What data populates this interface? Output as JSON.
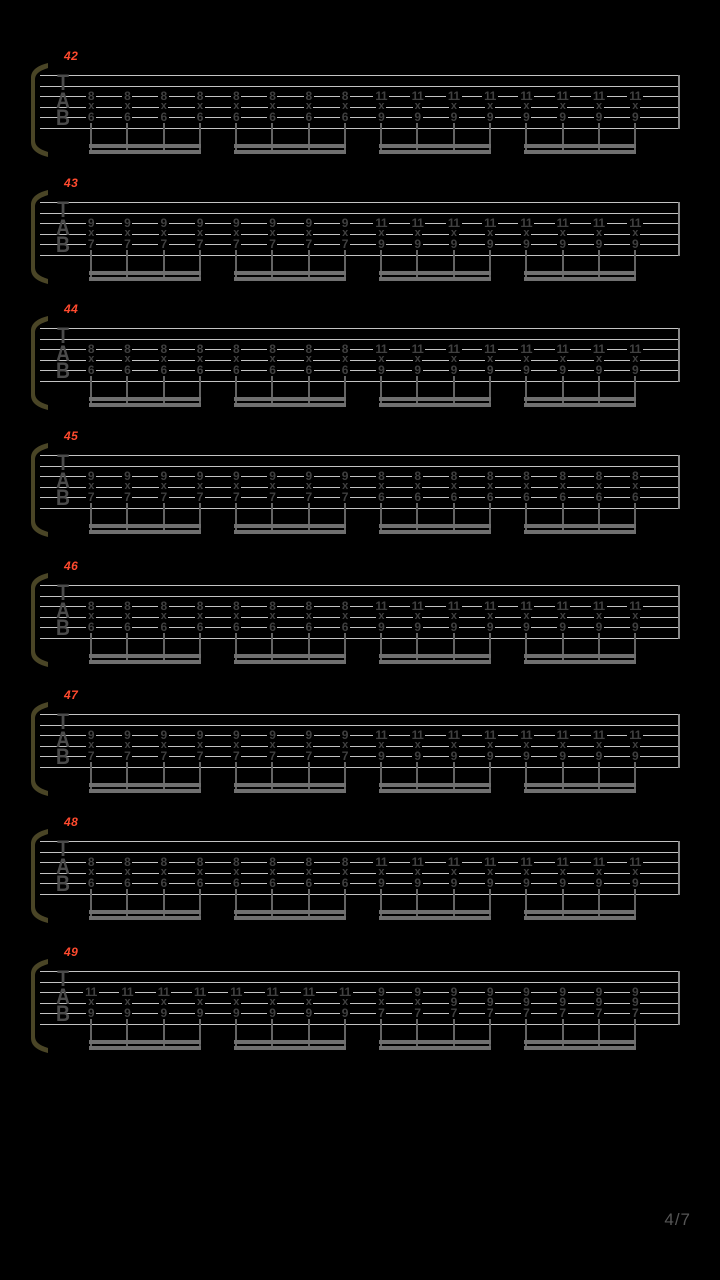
{
  "page": {
    "indicator": "4/7"
  },
  "clef": {
    "letters": [
      "T",
      "A",
      "B"
    ]
  },
  "colors": {
    "background": "#000000",
    "staff_line": "#c4c4c4",
    "fret_text": "#404040",
    "stem": "#646464",
    "beam": "#707070",
    "bracket": "#4a4526",
    "clef": "#4b4b4b",
    "barline": "#8a8a8a",
    "measure_number": "#ff4a2e",
    "page_indicator": "#565656"
  },
  "notation": {
    "string_lines": [
      3,
      4,
      5
    ],
    "note_value": "sixteenth",
    "beam_groups_per_measure": 4,
    "stacks_per_measure": 16
  },
  "measures": [
    {
      "number": "42",
      "stacks": [
        [
          "8",
          "x",
          "6"
        ],
        [
          "8",
          "x",
          "6"
        ],
        [
          "8",
          "x",
          "6"
        ],
        [
          "8",
          "x",
          "6"
        ],
        [
          "8",
          "x",
          "6"
        ],
        [
          "8",
          "x",
          "6"
        ],
        [
          "8",
          "x",
          "6"
        ],
        [
          "8",
          "x",
          "6"
        ],
        [
          "11",
          "x",
          "9"
        ],
        [
          "11",
          "x",
          "9"
        ],
        [
          "11",
          "x",
          "9"
        ],
        [
          "11",
          "x",
          "9"
        ],
        [
          "11",
          "x",
          "9"
        ],
        [
          "11",
          "x",
          "9"
        ],
        [
          "11",
          "x",
          "9"
        ],
        [
          "11",
          "x",
          "9"
        ]
      ]
    },
    {
      "number": "43",
      "stacks": [
        [
          "9",
          "x",
          "7"
        ],
        [
          "9",
          "x",
          "7"
        ],
        [
          "9",
          "x",
          "7"
        ],
        [
          "9",
          "x",
          "7"
        ],
        [
          "9",
          "x",
          "7"
        ],
        [
          "9",
          "x",
          "7"
        ],
        [
          "9",
          "x",
          "7"
        ],
        [
          "9",
          "x",
          "7"
        ],
        [
          "11",
          "x",
          "9"
        ],
        [
          "11",
          "x",
          "9"
        ],
        [
          "11",
          "x",
          "9"
        ],
        [
          "11",
          "x",
          "9"
        ],
        [
          "11",
          "x",
          "9"
        ],
        [
          "11",
          "x",
          "9"
        ],
        [
          "11",
          "x",
          "9"
        ],
        [
          "11",
          "x",
          "9"
        ]
      ]
    },
    {
      "number": "44",
      "stacks": [
        [
          "8",
          "x",
          "6"
        ],
        [
          "8",
          "x",
          "6"
        ],
        [
          "8",
          "x",
          "6"
        ],
        [
          "8",
          "x",
          "6"
        ],
        [
          "8",
          "x",
          "6"
        ],
        [
          "8",
          "x",
          "6"
        ],
        [
          "8",
          "x",
          "6"
        ],
        [
          "8",
          "x",
          "6"
        ],
        [
          "11",
          "x",
          "9"
        ],
        [
          "11",
          "x",
          "9"
        ],
        [
          "11",
          "x",
          "9"
        ],
        [
          "11",
          "x",
          "9"
        ],
        [
          "11",
          "x",
          "9"
        ],
        [
          "11",
          "x",
          "9"
        ],
        [
          "11",
          "x",
          "9"
        ],
        [
          "11",
          "x",
          "9"
        ]
      ]
    },
    {
      "number": "45",
      "stacks": [
        [
          "9",
          "x",
          "7"
        ],
        [
          "9",
          "x",
          "7"
        ],
        [
          "9",
          "x",
          "7"
        ],
        [
          "9",
          "x",
          "7"
        ],
        [
          "9",
          "x",
          "7"
        ],
        [
          "9",
          "x",
          "7"
        ],
        [
          "9",
          "x",
          "7"
        ],
        [
          "9",
          "x",
          "7"
        ],
        [
          "8",
          "x",
          "6"
        ],
        [
          "8",
          "x",
          "6"
        ],
        [
          "8",
          "x",
          "6"
        ],
        [
          "8",
          "x",
          "6"
        ],
        [
          "8",
          "x",
          "6"
        ],
        [
          "8",
          "x",
          "6"
        ],
        [
          "8",
          "x",
          "6"
        ],
        [
          "8",
          "x",
          "6"
        ]
      ]
    },
    {
      "number": "46",
      "stacks": [
        [
          "8",
          "x",
          "6"
        ],
        [
          "8",
          "x",
          "6"
        ],
        [
          "8",
          "x",
          "6"
        ],
        [
          "8",
          "x",
          "6"
        ],
        [
          "8",
          "x",
          "6"
        ],
        [
          "8",
          "x",
          "6"
        ],
        [
          "8",
          "x",
          "6"
        ],
        [
          "8",
          "x",
          "6"
        ],
        [
          "11",
          "x",
          "9"
        ],
        [
          "11",
          "x",
          "9"
        ],
        [
          "11",
          "x",
          "9"
        ],
        [
          "11",
          "x",
          "9"
        ],
        [
          "11",
          "x",
          "9"
        ],
        [
          "11",
          "x",
          "9"
        ],
        [
          "11",
          "x",
          "9"
        ],
        [
          "11",
          "x",
          "9"
        ]
      ]
    },
    {
      "number": "47",
      "stacks": [
        [
          "9",
          "x",
          "7"
        ],
        [
          "9",
          "x",
          "7"
        ],
        [
          "9",
          "x",
          "7"
        ],
        [
          "9",
          "x",
          "7"
        ],
        [
          "9",
          "x",
          "7"
        ],
        [
          "9",
          "x",
          "7"
        ],
        [
          "9",
          "x",
          "7"
        ],
        [
          "9",
          "x",
          "7"
        ],
        [
          "11",
          "x",
          "9"
        ],
        [
          "11",
          "x",
          "9"
        ],
        [
          "11",
          "x",
          "9"
        ],
        [
          "11",
          "x",
          "9"
        ],
        [
          "11",
          "x",
          "9"
        ],
        [
          "11",
          "x",
          "9"
        ],
        [
          "11",
          "x",
          "9"
        ],
        [
          "11",
          "x",
          "9"
        ]
      ]
    },
    {
      "number": "48",
      "stacks": [
        [
          "8",
          "x",
          "6"
        ],
        [
          "8",
          "x",
          "6"
        ],
        [
          "8",
          "x",
          "6"
        ],
        [
          "8",
          "x",
          "6"
        ],
        [
          "8",
          "x",
          "6"
        ],
        [
          "8",
          "x",
          "6"
        ],
        [
          "8",
          "x",
          "6"
        ],
        [
          "8",
          "x",
          "6"
        ],
        [
          "11",
          "x",
          "9"
        ],
        [
          "11",
          "x",
          "9"
        ],
        [
          "11",
          "x",
          "9"
        ],
        [
          "11",
          "x",
          "9"
        ],
        [
          "11",
          "x",
          "9"
        ],
        [
          "11",
          "x",
          "9"
        ],
        [
          "11",
          "x",
          "9"
        ],
        [
          "11",
          "x",
          "9"
        ]
      ]
    },
    {
      "number": "49",
      "stacks": [
        [
          "11",
          "x",
          "9"
        ],
        [
          "11",
          "x",
          "9"
        ],
        [
          "11",
          "x",
          "9"
        ],
        [
          "11",
          "x",
          "9"
        ],
        [
          "11",
          "x",
          "9"
        ],
        [
          "11",
          "x",
          "9"
        ],
        [
          "11",
          "x",
          "9"
        ],
        [
          "11",
          "x",
          "9"
        ],
        [
          "9",
          "x",
          "7"
        ],
        [
          "9",
          "x",
          "7"
        ],
        [
          "9",
          "9",
          "7"
        ],
        [
          "9",
          "9",
          "7"
        ],
        [
          "9",
          "9",
          "7"
        ],
        [
          "9",
          "9",
          "7"
        ],
        [
          "9",
          "9",
          "7"
        ],
        [
          "9",
          "9",
          "7"
        ]
      ]
    }
  ]
}
